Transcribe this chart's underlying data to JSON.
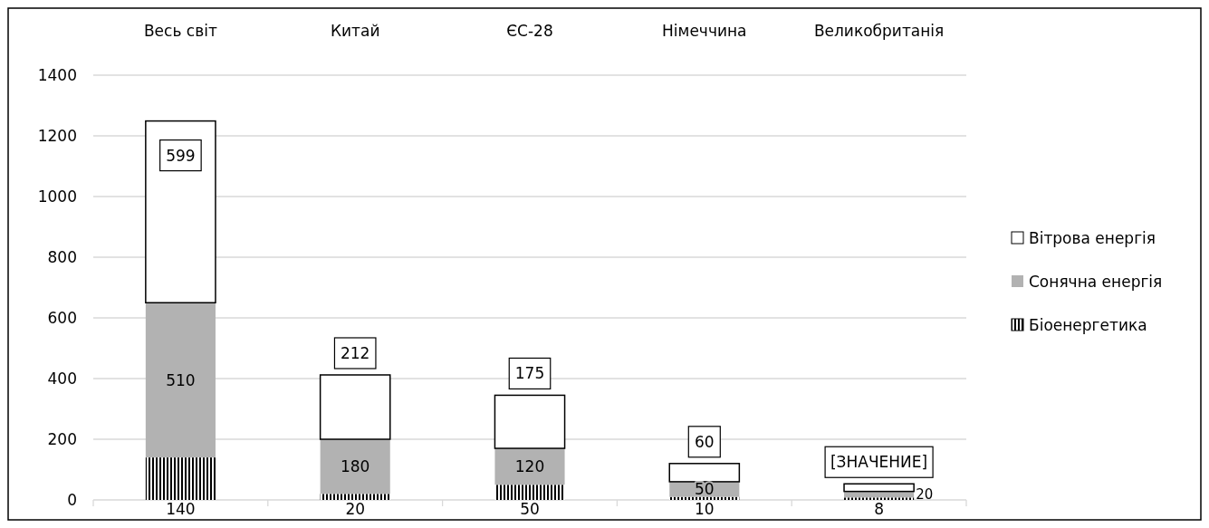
{
  "chart_data": {
    "type": "bar",
    "stacked": true,
    "categories": [
      "Весь світ",
      "Китай",
      "ЄС-28",
      "Німеччина",
      "Великобританія"
    ],
    "series": [
      {
        "name": "Біоенергетика",
        "color": "#000000",
        "values": [
          140,
          20,
          50,
          10,
          8
        ],
        "value_labels": [
          "140",
          "20",
          "50",
          "10",
          "8"
        ]
      },
      {
        "name": "Сонячна енергія",
        "color": "#b2b2b2",
        "values": [
          510,
          180,
          120,
          50,
          20
        ],
        "value_labels": [
          "510",
          "180",
          "120",
          "50",
          "20"
        ]
      },
      {
        "name": "Вітрова енергія",
        "color": "#ffffff",
        "values": [
          599,
          212,
          175,
          60,
          25
        ],
        "value_labels": [
          "599",
          "212",
          "175",
          "60",
          "[ЗНАЧЕНИЕ]"
        ]
      }
    ],
    "ylim": [
      0,
      1400
    ],
    "yticks": [
      0,
      200,
      400,
      600,
      800,
      1000,
      1200,
      1400
    ],
    "grid": "y",
    "legend": "right"
  }
}
